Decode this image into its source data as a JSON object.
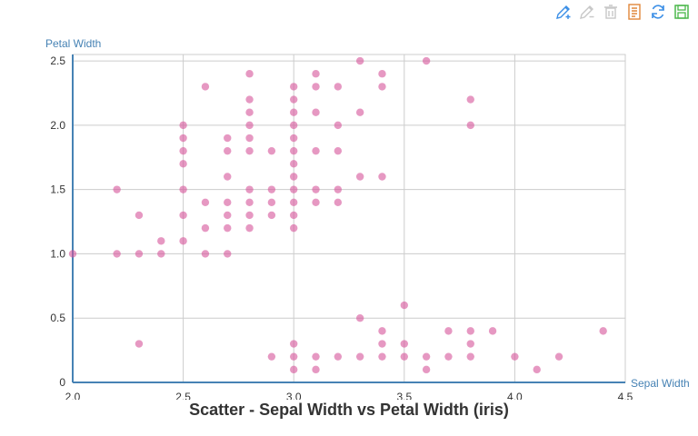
{
  "toolbar": {
    "tools": [
      {
        "name": "edit-icon",
        "color": "#3a8ee6"
      },
      {
        "name": "erase-icon",
        "color": "#c7c7c7"
      },
      {
        "name": "clear-icon",
        "color": "#c7c7c7"
      },
      {
        "name": "data-view-icon",
        "color": "#e0873a"
      },
      {
        "name": "refresh-icon",
        "color": "#3a8ee6"
      },
      {
        "name": "save-icon",
        "color": "#4cb84c"
      }
    ]
  },
  "chart_data": {
    "type": "scatter",
    "title": "Scatter - Sepal Width vs Petal Width (iris)",
    "xlabel": "Sepal Width",
    "ylabel": "Petal Width",
    "xlim": [
      2.0,
      4.5
    ],
    "ylim": [
      0,
      2.55
    ],
    "xticks": [
      "2.0",
      "2.5",
      "3.0",
      "3.5",
      "4.0",
      "4.5"
    ],
    "yticks": [
      "0",
      "0.5",
      "1.0",
      "1.5",
      "2.0",
      "2.5"
    ],
    "grid": true,
    "point_color": "#d6549a",
    "axis_color": "#4682b4",
    "points": [
      [
        2.0,
        1.0
      ],
      [
        2.2,
        1.0
      ],
      [
        2.2,
        1.5
      ],
      [
        2.3,
        1.0
      ],
      [
        2.3,
        1.3
      ],
      [
        2.3,
        0.3
      ],
      [
        2.4,
        1.0
      ],
      [
        2.4,
        1.1
      ],
      [
        2.5,
        2.0
      ],
      [
        2.5,
        1.9
      ],
      [
        2.5,
        1.8
      ],
      [
        2.5,
        1.7
      ],
      [
        2.5,
        1.5
      ],
      [
        2.5,
        1.3
      ],
      [
        2.5,
        1.1
      ],
      [
        2.6,
        2.3
      ],
      [
        2.6,
        1.4
      ],
      [
        2.6,
        1.2
      ],
      [
        2.6,
        1.0
      ],
      [
        2.7,
        1.9
      ],
      [
        2.7,
        1.8
      ],
      [
        2.7,
        1.6
      ],
      [
        2.7,
        1.4
      ],
      [
        2.7,
        1.3
      ],
      [
        2.7,
        1.2
      ],
      [
        2.7,
        1.0
      ],
      [
        2.8,
        2.4
      ],
      [
        2.8,
        2.2
      ],
      [
        2.8,
        2.1
      ],
      [
        2.8,
        2.0
      ],
      [
        2.8,
        1.9
      ],
      [
        2.8,
        1.8
      ],
      [
        2.8,
        1.5
      ],
      [
        2.8,
        1.4
      ],
      [
        2.8,
        1.3
      ],
      [
        2.8,
        1.2
      ],
      [
        2.9,
        1.8
      ],
      [
        2.9,
        1.5
      ],
      [
        2.9,
        1.4
      ],
      [
        2.9,
        1.3
      ],
      [
        2.9,
        0.2
      ],
      [
        3.0,
        2.3
      ],
      [
        3.0,
        2.2
      ],
      [
        3.0,
        2.1
      ],
      [
        3.0,
        2.0
      ],
      [
        3.0,
        1.9
      ],
      [
        3.0,
        1.8
      ],
      [
        3.0,
        1.7
      ],
      [
        3.0,
        1.6
      ],
      [
        3.0,
        1.5
      ],
      [
        3.0,
        1.4
      ],
      [
        3.0,
        1.3
      ],
      [
        3.0,
        1.2
      ],
      [
        3.0,
        0.3
      ],
      [
        3.0,
        0.2
      ],
      [
        3.0,
        0.1
      ],
      [
        3.1,
        2.4
      ],
      [
        3.1,
        2.3
      ],
      [
        3.1,
        2.1
      ],
      [
        3.1,
        1.8
      ],
      [
        3.1,
        1.5
      ],
      [
        3.1,
        1.4
      ],
      [
        3.1,
        0.2
      ],
      [
        3.1,
        0.1
      ],
      [
        3.2,
        2.3
      ],
      [
        3.2,
        2.0
      ],
      [
        3.2,
        1.8
      ],
      [
        3.2,
        1.5
      ],
      [
        3.2,
        1.4
      ],
      [
        3.2,
        0.2
      ],
      [
        3.3,
        2.5
      ],
      [
        3.3,
        2.1
      ],
      [
        3.3,
        1.6
      ],
      [
        3.3,
        0.5
      ],
      [
        3.3,
        0.2
      ],
      [
        3.4,
        2.4
      ],
      [
        3.4,
        2.3
      ],
      [
        3.4,
        1.6
      ],
      [
        3.4,
        0.4
      ],
      [
        3.4,
        0.3
      ],
      [
        3.4,
        0.2
      ],
      [
        3.5,
        0.6
      ],
      [
        3.5,
        0.3
      ],
      [
        3.5,
        0.2
      ],
      [
        3.6,
        2.5
      ],
      [
        3.6,
        0.2
      ],
      [
        3.6,
        0.1
      ],
      [
        3.7,
        0.4
      ],
      [
        3.7,
        0.2
      ],
      [
        3.8,
        2.2
      ],
      [
        3.8,
        2.0
      ],
      [
        3.8,
        0.4
      ],
      [
        3.8,
        0.3
      ],
      [
        3.8,
        0.2
      ],
      [
        3.9,
        0.4
      ],
      [
        4.0,
        0.2
      ],
      [
        4.1,
        0.1
      ],
      [
        4.2,
        0.2
      ],
      [
        4.4,
        0.4
      ]
    ]
  }
}
